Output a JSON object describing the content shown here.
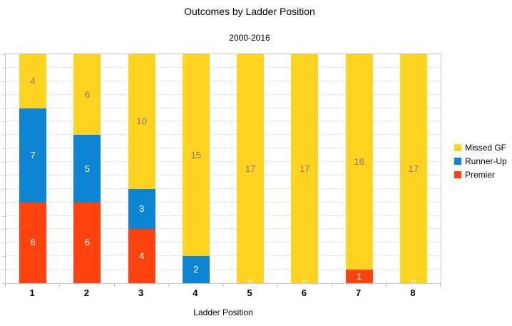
{
  "chart_data": {
    "type": "bar",
    "stacked": true,
    "title": "Outcomes by Ladder Position",
    "subtitle": "2000-2016",
    "xlabel": "Ladder Position",
    "categories": [
      "1",
      "2",
      "3",
      "4",
      "5",
      "6",
      "7",
      "8"
    ],
    "series": [
      {
        "name": "Premier",
        "color": "#FF420E",
        "label_color": "#ffffff",
        "values": [
          6,
          6,
          4,
          0,
          0,
          0,
          1,
          0
        ]
      },
      {
        "name": "Runner-Up",
        "color": "#0E85D3",
        "label_color": "#ffffff",
        "values": [
          7,
          5,
          3,
          2,
          0,
          0,
          0,
          0
        ]
      },
      {
        "name": "Missed GF",
        "color": "#FFD320",
        "label_color": "#7b7b7b",
        "values": [
          4,
          6,
          10,
          15,
          17,
          17,
          16,
          17
        ]
      }
    ],
    "totals": [
      17,
      17,
      17,
      17,
      17,
      17,
      17,
      17
    ],
    "ylim": [
      0,
      17
    ],
    "grid": "horizontal dashed, every 1 unit, no y-axis tick labels",
    "legend_position": "right",
    "zero_labels_visible_on_categories": [
      "5",
      "6",
      "8"
    ],
    "zero_label_color": "#ffffff"
  },
  "legend": {
    "items": [
      {
        "label": "Missed GF",
        "color": "#FFD320"
      },
      {
        "label": "Runner-Up",
        "color": "#0E85D3"
      },
      {
        "label": "Premier",
        "color": "#FF420E"
      }
    ]
  }
}
